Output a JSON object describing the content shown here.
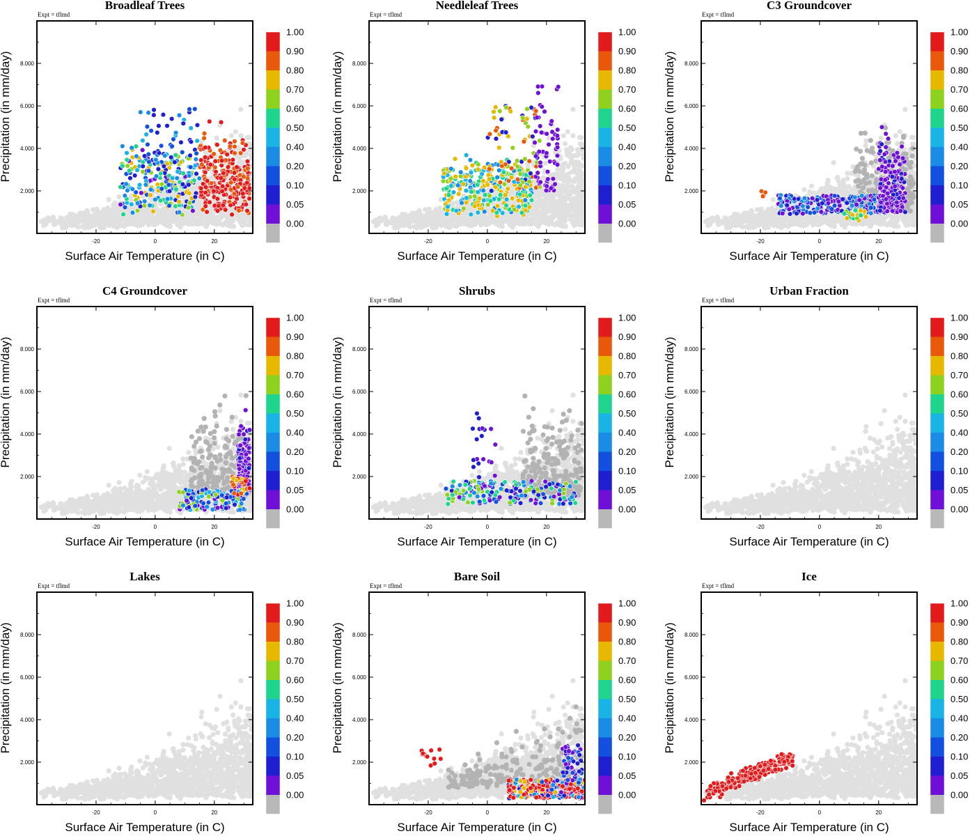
{
  "figure": {
    "expt_label": "Expt = tflmd",
    "xlabel": "Surface Air Temperature (in C)",
    "ylabel": "Precipitation (in mm/day)"
  },
  "chart_data": [
    {
      "type": "scatter",
      "title": "Broadleaf Trees",
      "pattern": "broadleaf",
      "xlim": [
        -40,
        33
      ],
      "ylim": [
        0,
        10
      ],
      "xticks": [
        -20,
        0,
        20
      ],
      "yticks": [
        2,
        4,
        6,
        8
      ],
      "ytick_labels": [
        "2.000",
        "4.000",
        "6.000",
        "8.000"
      ]
    },
    {
      "type": "scatter",
      "title": "Needleleaf Trees",
      "pattern": "needleleaf",
      "xlim": [
        -40,
        33
      ],
      "ylim": [
        0,
        10
      ],
      "xticks": [
        -20,
        0,
        20
      ],
      "yticks": [
        2,
        4,
        6,
        8
      ],
      "ytick_labels": [
        "2.000",
        "4.000",
        "6.000",
        "8.000"
      ]
    },
    {
      "type": "scatter",
      "title": "C3 Groundcover",
      "pattern": "c3",
      "xlim": [
        -40,
        33
      ],
      "ylim": [
        0,
        10
      ],
      "xticks": [
        -20,
        0,
        20
      ],
      "yticks": [
        2,
        4,
        6,
        8
      ],
      "ytick_labels": [
        "2.000",
        "4.000",
        "6.000",
        "8.000"
      ]
    },
    {
      "type": "scatter",
      "title": "C4 Groundcover",
      "pattern": "c4",
      "xlim": [
        -40,
        33
      ],
      "ylim": [
        0,
        10
      ],
      "xticks": [
        -20,
        0,
        20
      ],
      "yticks": [
        2,
        4,
        6,
        8
      ],
      "ytick_labels": [
        "2.000",
        "4.000",
        "6.000",
        "8.000"
      ]
    },
    {
      "type": "scatter",
      "title": "Shrubs",
      "pattern": "shrubs",
      "xlim": [
        -40,
        33
      ],
      "ylim": [
        0,
        10
      ],
      "xticks": [
        -20,
        0,
        20
      ],
      "yticks": [
        2,
        4,
        6,
        8
      ],
      "ytick_labels": [
        "2.000",
        "4.000",
        "6.000",
        "8.000"
      ]
    },
    {
      "type": "scatter",
      "title": "Urban Fraction",
      "pattern": "none",
      "xlim": [
        -40,
        33
      ],
      "ylim": [
        0,
        10
      ],
      "xticks": [
        -20,
        0,
        20
      ],
      "yticks": [
        2,
        4,
        6,
        8
      ],
      "ytick_labels": [
        "2.000",
        "4.000",
        "6.000",
        "8.000"
      ]
    },
    {
      "type": "scatter",
      "title": "Lakes",
      "pattern": "none",
      "xlim": [
        -40,
        33
      ],
      "ylim": [
        0,
        10
      ],
      "xticks": [
        -20,
        0,
        20
      ],
      "yticks": [
        2,
        4,
        6,
        8
      ],
      "ytick_labels": [
        "2.000",
        "4.000",
        "6.000",
        "8.000"
      ]
    },
    {
      "type": "scatter",
      "title": "Bare Soil",
      "pattern": "baresoil",
      "xlim": [
        -40,
        33
      ],
      "ylim": [
        0,
        10
      ],
      "xticks": [
        -20,
        0,
        20
      ],
      "yticks": [
        2,
        4,
        6,
        8
      ],
      "ytick_labels": [
        "2.000",
        "4.000",
        "6.000",
        "8.000"
      ]
    },
    {
      "type": "scatter",
      "title": "Ice",
      "pattern": "ice",
      "xlim": [
        -40,
        33
      ],
      "ylim": [
        0,
        10
      ],
      "xticks": [
        -20,
        0,
        20
      ],
      "yticks": [
        2,
        4,
        6,
        8
      ],
      "ytick_labels": [
        "2.000",
        "4.000",
        "6.000",
        "8.000"
      ]
    }
  ],
  "colorbar": {
    "labels": [
      "1.00",
      "0.90",
      "0.80",
      "0.70",
      "0.60",
      "0.50",
      "0.40",
      "0.20",
      "0.10",
      "0.05",
      "0.00"
    ],
    "colors": [
      "#e31a1c",
      "#e8590c",
      "#e6b800",
      "#8fd11f",
      "#1fd48c",
      "#1ab3e6",
      "#1a8ce6",
      "#1450e0",
      "#1f1fd1",
      "#6f10d6",
      "#b8b8b8"
    ]
  },
  "background_point_color": "#e0e0e0",
  "zero_point_color": "#b3b3b3"
}
